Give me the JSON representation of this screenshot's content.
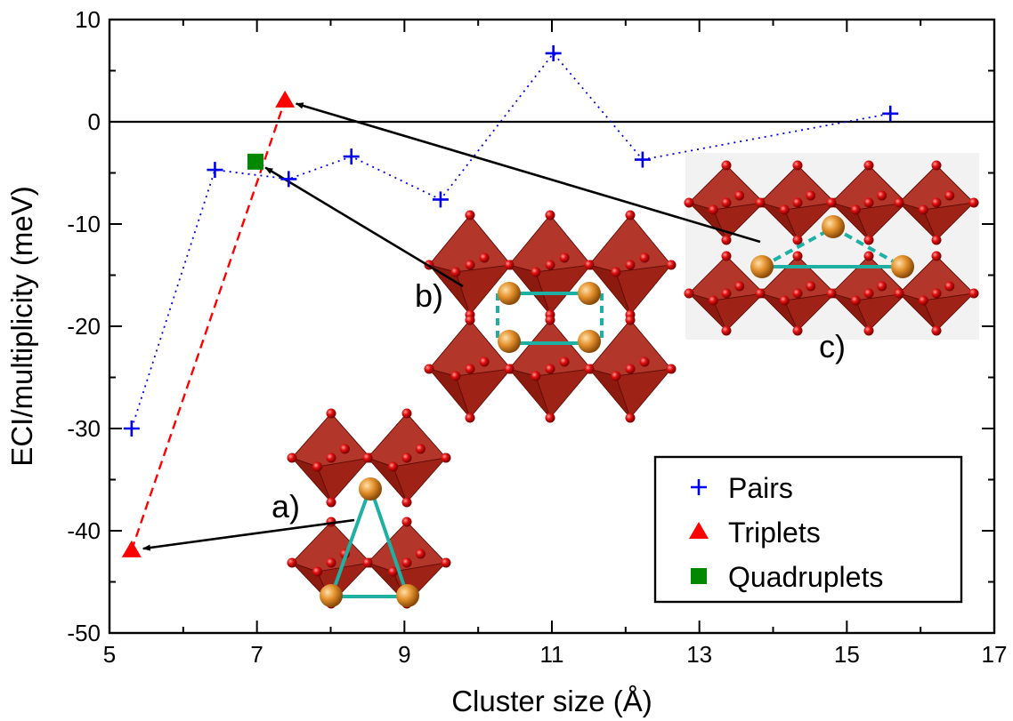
{
  "chart_data": {
    "type": "scatter",
    "xlabel": "Cluster size (Å)",
    "ylabel": "ECI/multiplicity (meV)",
    "xlim": [
      5,
      17
    ],
    "ylim": [
      -50,
      10
    ],
    "xticks": [
      5,
      7,
      9,
      11,
      13,
      15,
      17
    ],
    "yticks": [
      -50,
      -40,
      -30,
      -20,
      -10,
      0,
      10
    ],
    "grid": false,
    "zero_line": true,
    "legend_position": "bottom-right",
    "series": [
      {
        "name": "Pairs",
        "marker": "plus",
        "color": "#0000ee",
        "line": "dotted",
        "x": [
          5.3,
          6.43,
          7.43,
          8.28,
          9.49,
          11.02,
          12.23,
          15.59
        ],
        "y": [
          -30,
          -4.7,
          -5.6,
          -3.4,
          -7.6,
          6.7,
          -3.7,
          0.8
        ]
      },
      {
        "name": "Triplets",
        "marker": "triangle",
        "color": "#ff0000",
        "line": "dashed",
        "x": [
          5.3,
          7.38
        ],
        "y": [
          -41.9,
          2.1
        ]
      },
      {
        "name": "Quadruplets",
        "marker": "square",
        "color": "#008800",
        "line": "none",
        "x": [
          6.98
        ],
        "y": [
          -3.9
        ]
      }
    ],
    "annotations": [
      {
        "label": "a)",
        "target": "Triplets",
        "target_x": 5.3,
        "target_y": -41.9
      },
      {
        "label": "b)",
        "target": "Quadruplets",
        "target_x": 6.98,
        "target_y": -3.9
      },
      {
        "label": "c)",
        "target": "Triplets",
        "target_x": 7.38,
        "target_y": 2.1
      }
    ]
  },
  "colors": {
    "octahedra": "#a42418",
    "octahedra_dark": "#7a1208",
    "oxygen": "#e01010",
    "cation": "#e3902c",
    "cluster_outline": "#1fb0a4"
  }
}
